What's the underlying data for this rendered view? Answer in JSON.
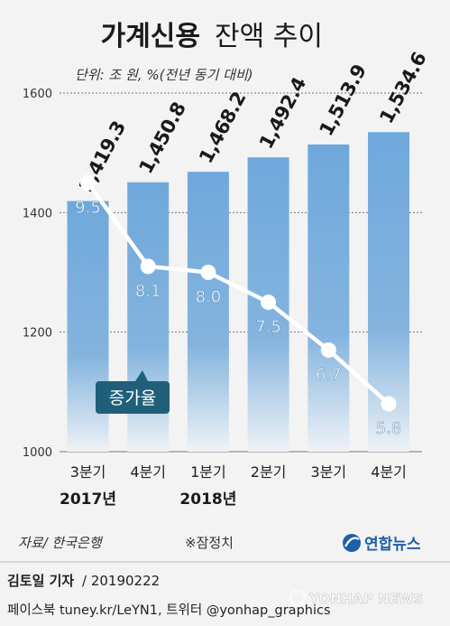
{
  "chart_data": {
    "type": "bar",
    "title_bold": "가계신용",
    "title_rest": "잔액 추이",
    "unit_note": "단위: 조 원, %(전년 동기 대비)",
    "categories": [
      "3분기",
      "4분기",
      "1분기",
      "2분기",
      "3분기",
      "4분기"
    ],
    "year_labels": [
      {
        "label": "2017년",
        "index": 0
      },
      {
        "label": "2018년",
        "index": 2
      }
    ],
    "series": [
      {
        "values": [
          1419.3,
          1450.8,
          1468.2,
          1492.4,
          1513.9,
          1534.6
        ],
        "value_labels": [
          "1,419.3",
          "1,450.8",
          "1,468.2",
          "1,492.4",
          "1,513.9",
          "1,534.6"
        ],
        "color": "#6fa8dc"
      },
      {
        "name": "증가율",
        "values": [
          9.5,
          8.1,
          8.0,
          7.5,
          6.7,
          5.8
        ],
        "value_labels": [
          "9.5",
          "8.1",
          "8.0",
          "7.5",
          "6.7",
          "5.8"
        ],
        "color": "#ffffff",
        "ylim": [
          5,
          11
        ]
      }
    ],
    "ylim": [
      1000,
      1600
    ],
    "yticks": [
      1000,
      1200,
      1400,
      1600
    ],
    "grid": true
  },
  "footer": {
    "source": "자료/ 한국은행",
    "note": "※잠정치",
    "logo_text": "연합뉴스",
    "reporter": "김토일 기자",
    "date": "/ 20190222",
    "sns": "페이스북 tuney.kr/LeYN1, 트위터 @yonhap_graphics",
    "watermark": "YONHAP NEWS"
  },
  "colors": {
    "bar": "#6fa8dc",
    "bar_fade": "#e9eef3",
    "legend_bg": "#1f5f7a",
    "line": "#ffffff",
    "grid": "#777777",
    "logo": "#1e5fa8"
  }
}
